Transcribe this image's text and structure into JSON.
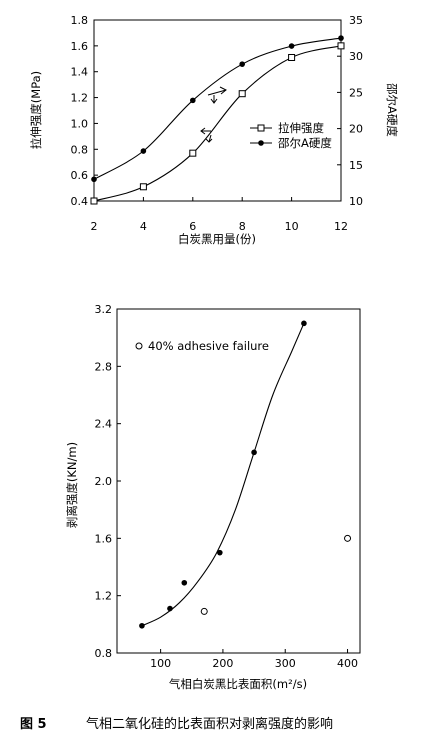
{
  "caption": {
    "figure_no": "图 5",
    "text": "气相二氧化硅的比表面积对剥离强度的影响"
  },
  "chart_data": [
    {
      "type": "line",
      "xlabel": "白炭黑用量(份)",
      "ylabel_left": "拉伸强度(MPa)",
      "ylabel_right": "邵尔A硬度",
      "xlim": [
        2,
        12
      ],
      "ylim_left": [
        0.4,
        1.8
      ],
      "ylim_right": [
        10,
        35
      ],
      "x_ticks": [
        "2",
        "4",
        "6",
        "8",
        "10",
        "12"
      ],
      "y_left_ticks": [
        "0.4",
        "0.6",
        "0.8",
        "1.0",
        "1.2",
        "1.4",
        "1.6",
        "1.8"
      ],
      "y_right_ticks": [
        "10",
        "15",
        "20",
        "25",
        "30",
        "35"
      ],
      "series": [
        {
          "name": "拉伸强度",
          "axis": "left",
          "marker": "square",
          "x": [
            2,
            4,
            6,
            8,
            10,
            12
          ],
          "values": [
            0.4,
            0.51,
            0.77,
            1.23,
            1.51,
            1.6
          ]
        },
        {
          "name": "邵尔A硬度",
          "axis": "right",
          "marker": "circle",
          "x": [
            2,
            4,
            6,
            8,
            10,
            12
          ],
          "values": [
            13,
            16.9,
            23.9,
            28.9,
            31.4,
            32.5
          ]
        }
      ],
      "legend_position": "right"
    },
    {
      "type": "scatter",
      "xlabel": "气相白炭黑比表面积(m²/s)",
      "ylabel": "剥离强度(KN/m)",
      "xlim": [
        30,
        420
      ],
      "ylim": [
        0.8,
        3.2
      ],
      "x_ticks": [
        "100",
        "200",
        "300",
        "400"
      ],
      "y_ticks": [
        "0.8",
        "1.2",
        "1.6",
        "2.0",
        "2.4",
        "2.8",
        "3.2"
      ],
      "legend_entry": "40% adhesive failure",
      "legend_position": "top-left",
      "points_filled": {
        "x": [
          70,
          115,
          138,
          195,
          250,
          330
        ],
        "y": [
          0.99,
          1.11,
          1.29,
          1.5,
          2.2,
          3.1
        ]
      },
      "points_open": {
        "x": [
          170,
          400
        ],
        "y": [
          1.09,
          1.6
        ]
      },
      "curve": {
        "x": [
          70,
          100,
          130,
          160,
          190,
          220,
          250,
          280,
          310,
          330
        ],
        "y": [
          0.99,
          1.05,
          1.15,
          1.3,
          1.5,
          1.8,
          2.2,
          2.6,
          2.9,
          3.1
        ]
      }
    }
  ]
}
